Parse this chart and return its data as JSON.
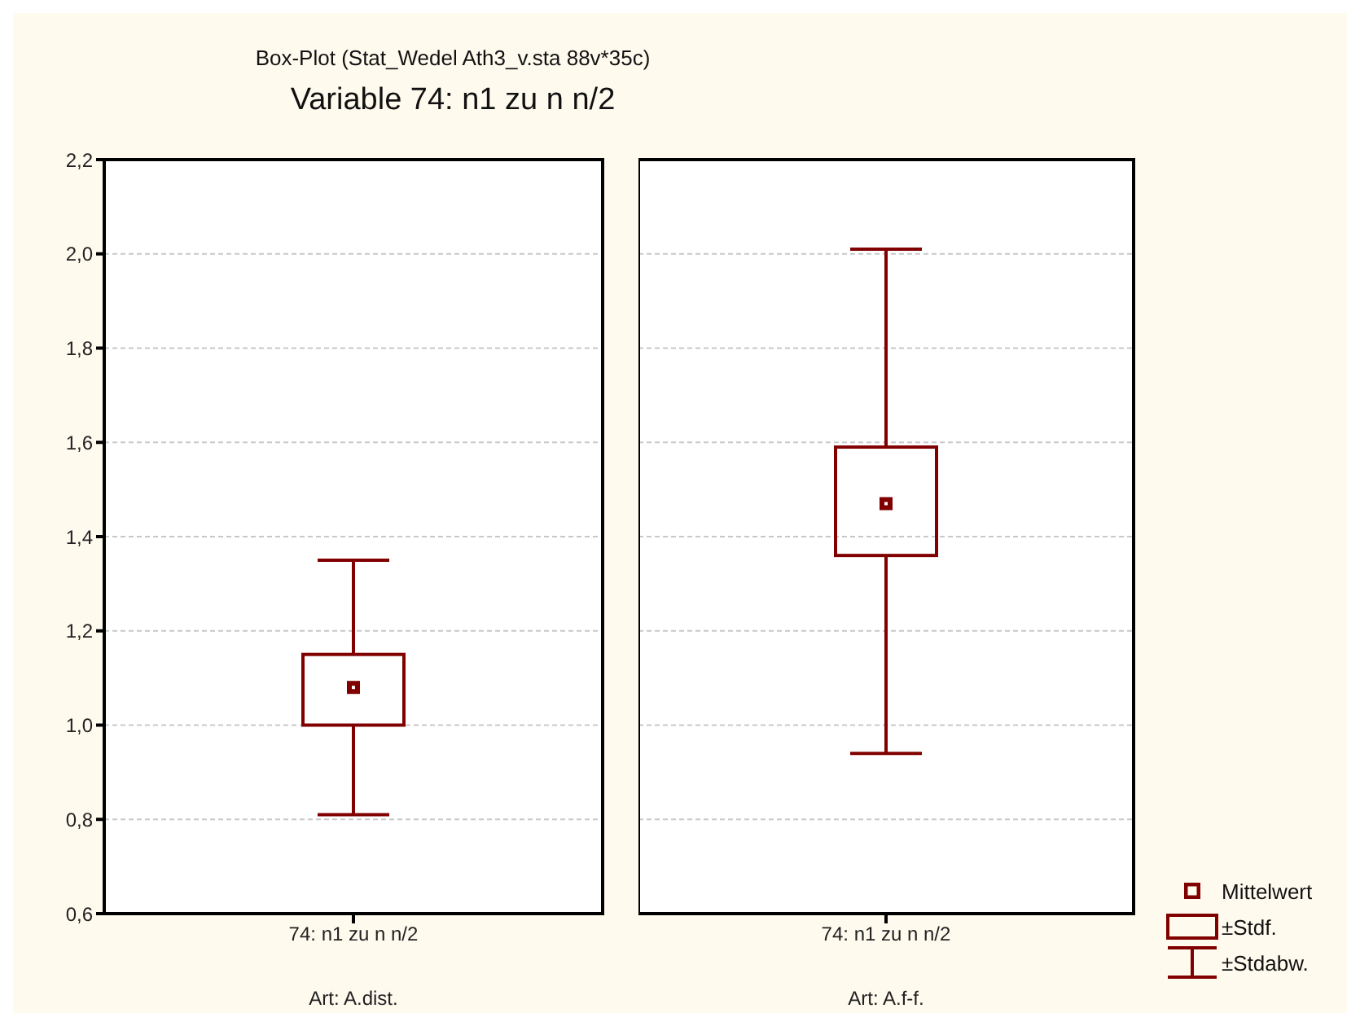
{
  "chart_data": [
    {
      "type": "box",
      "title": "Box-Plot (Stat_Wedel Ath3_v.sta 88v*35c)",
      "subtitle": "Variable 74: n1 zu n n/2",
      "categories": [
        "74: n1 zu n n/2"
      ],
      "xlabel": "Art: A.dist.",
      "ylim": [
        0.6,
        2.2
      ],
      "yticks": [
        {
          "value": 0.6,
          "label": "0,6"
        },
        {
          "value": 0.8,
          "label": "0,8"
        },
        {
          "value": 1.0,
          "label": "1,0"
        },
        {
          "value": 1.2,
          "label": "1,2"
        },
        {
          "value": 1.4,
          "label": "1,4"
        },
        {
          "value": 1.6,
          "label": "1,6"
        },
        {
          "value": 1.8,
          "label": "1,8"
        },
        {
          "value": 2.0,
          "label": "2,0"
        },
        {
          "value": 2.2,
          "label": "2,2"
        }
      ],
      "grid": "y",
      "marker": "square",
      "series": [
        {
          "color": "#800000",
          "boxes": [
            {
              "low": 0.81,
              "q1": 1.0,
              "q3": 1.15,
              "high": 1.35,
              "mean": 1.08
            }
          ]
        }
      ]
    },
    {
      "type": "box",
      "categories": [
        "74: n1 zu n n/2"
      ],
      "xlabel": "Art: A.f-f.",
      "ylim": [
        0.6,
        2.2
      ],
      "yticks": [
        0.6,
        0.8,
        1.0,
        1.2,
        1.4,
        1.6,
        1.8,
        2.0,
        2.2
      ],
      "grid": "y",
      "marker": "square",
      "tick_labels": "x",
      "annotations": [
        "Mittelwert",
        "±Stdf.",
        "±Stdabw."
      ],
      "series": [
        {
          "color": "#800000",
          "boxes": [
            {
              "low": 0.94,
              "q1": 1.36,
              "q3": 1.59,
              "high": 2.01,
              "mean": 1.47
            }
          ]
        }
      ]
    }
  ]
}
